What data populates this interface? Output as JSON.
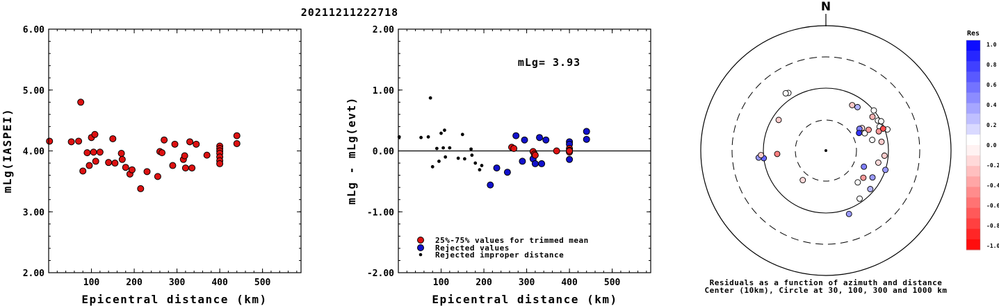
{
  "title": "20211211222718",
  "colors": {
    "accepted": "#dd1111",
    "rejected": "#1111cc",
    "improper": "#000000",
    "axis": "#000000"
  },
  "chart_data": [
    {
      "type": "scatter",
      "id": "left",
      "xlabel": "Epicentral distance (km)",
      "ylabel": "mLg(IASPEI)",
      "xlim": [
        0,
        590
      ],
      "ylim": [
        2.0,
        6.0
      ],
      "xticks": [
        "100",
        "200",
        "300",
        "400",
        "500"
      ],
      "yticks": [
        "2.00",
        "3.00",
        "4.00",
        "5.00",
        "6.00"
      ],
      "series": [
        {
          "x": [
            2,
            53,
            70,
            75,
            80,
            90,
            95,
            100,
            105,
            108,
            110,
            120,
            140,
            150,
            155,
            170,
            172,
            180,
            190,
            195,
            215,
            230,
            255,
            260,
            265,
            270,
            290,
            295,
            315,
            318,
            320,
            330,
            335,
            345,
            370,
            400,
            400,
            400,
            400,
            400,
            400,
            400,
            440,
            440
          ],
          "y": [
            4.16,
            4.15,
            4.16,
            4.8,
            3.67,
            3.97,
            3.76,
            4.22,
            3.98,
            4.27,
            3.83,
            3.98,
            3.81,
            4.2,
            3.8,
            3.96,
            3.86,
            3.73,
            3.62,
            3.69,
            3.38,
            3.66,
            3.58,
            3.99,
            3.97,
            4.18,
            3.76,
            4.11,
            3.86,
            3.92,
            3.72,
            4.15,
            3.72,
            4.11,
            3.93,
            4.08,
            4.04,
            4.0,
            3.96,
            3.9,
            3.84,
            3.79,
            4.25,
            4.12
          ]
        }
      ]
    },
    {
      "type": "scatter",
      "id": "middle",
      "xlabel": "Epicentral distance (km)",
      "ylabel": "mLg - mLg(evt)",
      "annotation": "mLg= 3.93",
      "xlim": [
        0,
        590
      ],
      "ylim": [
        -2.0,
        2.0
      ],
      "xticks": [
        "100",
        "200",
        "300",
        "400",
        "500"
      ],
      "yticks": [
        "-2.00",
        "-1.00",
        "0.00",
        "1.00",
        "2.00"
      ],
      "legend_position": "bottom-left",
      "series": [
        {
          "name": "25%-75% values for trimmed mean",
          "x": [
            265,
            270,
            315,
            318,
            320,
            370,
            400,
            400,
            400,
            400
          ],
          "y": [
            0.06,
            0.04,
            -0.01,
            -0.05,
            -0.07,
            0.0,
            0.04,
            0.01,
            -0.02,
            0.0
          ]
        },
        {
          "name": "Rejected values",
          "x": [
            215,
            230,
            255,
            275,
            290,
            295,
            315,
            320,
            330,
            335,
            345,
            400,
            400,
            400,
            440,
            440
          ],
          "y": [
            -0.56,
            -0.28,
            -0.35,
            0.25,
            -0.17,
            0.18,
            -0.13,
            -0.21,
            0.22,
            -0.21,
            0.18,
            0.15,
            0.11,
            -0.14,
            0.32,
            0.19
          ],
          "marker": "blue"
        },
        {
          "name": "Rejected improper distance",
          "x": [
            2,
            53,
            70,
            75,
            80,
            90,
            95,
            100,
            105,
            108,
            110,
            120,
            140,
            150,
            155,
            170,
            172,
            180,
            190,
            195
          ],
          "y": [
            0.23,
            0.22,
            0.23,
            0.87,
            -0.26,
            0.04,
            -0.17,
            0.29,
            0.05,
            0.34,
            -0.1,
            0.05,
            -0.12,
            0.27,
            -0.13,
            0.03,
            -0.07,
            -0.2,
            -0.31,
            -0.24
          ]
        }
      ]
    },
    {
      "type": "scatter",
      "id": "polar",
      "north_label": "N",
      "caption_1": "Residuals as a function of azimuth and distance",
      "caption_2": "Center (10km), Circle at 30, 100, 300 and 1000 km",
      "colorbar_title": "Res",
      "colorbar_ticks": [
        "1.0",
        "0.8",
        "0.6",
        "0.4",
        "0.2",
        "0.0",
        "-0.2",
        "-0.4",
        "-0.6",
        "-0.8",
        "-1.0"
      ],
      "points": [
        {
          "az": 327,
          "dist": 550,
          "res": 0.0
        },
        {
          "az": 325,
          "dist": 560,
          "res": 0.0
        },
        {
          "az": 30,
          "dist": 420,
          "res": -0.22
        },
        {
          "az": 36,
          "dist": 430,
          "res": 0.3
        },
        {
          "az": 303,
          "dist": 450,
          "res": -0.2
        },
        {
          "az": 50,
          "dist": 500,
          "res": 0.0
        },
        {
          "az": 54,
          "dist": 460,
          "res": -0.3
        },
        {
          "az": 60,
          "dist": 480,
          "res": 0.0
        },
        {
          "az": 62,
          "dist": 500,
          "res": 0.0
        },
        {
          "az": 66,
          "dist": 470,
          "res": 0.0
        },
        {
          "az": 71,
          "dist": 520,
          "res": 0.0
        },
        {
          "az": 58,
          "dist": 340,
          "res": -0.15
        },
        {
          "az": 57,
          "dist": 320,
          "res": 0.5
        },
        {
          "az": 62,
          "dist": 300,
          "res": 0.8
        },
        {
          "az": 66,
          "dist": 340,
          "res": 0.0
        },
        {
          "az": 64,
          "dist": 380,
          "res": -0.4
        },
        {
          "az": 70,
          "dist": 450,
          "res": -0.4
        },
        {
          "az": 69,
          "dist": 490,
          "res": -0.7
        },
        {
          "az": 77,
          "dist": 380,
          "res": 0.0
        },
        {
          "az": 81,
          "dist": 450,
          "res": -0.2
        },
        {
          "az": 95,
          "dist": 470,
          "res": -0.2
        },
        {
          "az": 103,
          "dist": 430,
          "res": -0.15
        },
        {
          "az": 108,
          "dist": 500,
          "res": 0.4
        },
        {
          "az": 113,
          "dist": 330,
          "res": 0.5
        },
        {
          "az": 120,
          "dist": 430,
          "res": 0.4
        },
        {
          "az": 126,
          "dist": 370,
          "res": -0.4
        },
        {
          "az": 135,
          "dist": 360,
          "res": 0.0
        },
        {
          "az": 131,
          "dist": 470,
          "res": 0.3
        },
        {
          "az": 145,
          "dist": 470,
          "res": 0.0
        },
        {
          "az": 160,
          "dist": 540,
          "res": 0.4
        },
        {
          "az": 218,
          "dist": 300,
          "res": -0.15
        },
        {
          "az": 263,
          "dist": 500,
          "res": 0.6
        },
        {
          "az": 264,
          "dist": 540,
          "res": 0.4
        },
        {
          "az": 266,
          "dist": 390,
          "res": -0.5
        },
        {
          "az": 266,
          "dist": 520,
          "res": -0.2
        }
      ]
    }
  ]
}
